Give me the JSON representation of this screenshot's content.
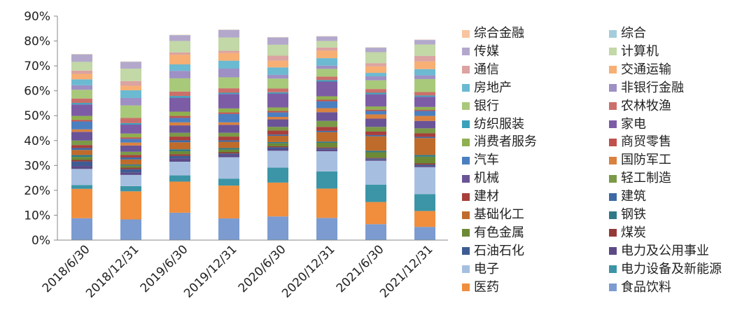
{
  "chart_data": {
    "type": "bar",
    "stacked": true,
    "categories": [
      "2018/6/30",
      "2018/12/31",
      "2019/6/30",
      "2019/12/31",
      "2020/6/30",
      "2020/12/31",
      "2021/6/30",
      "2021/12/31"
    ],
    "y_ticks": [
      "0%",
      "10%",
      "20%",
      "30%",
      "40%",
      "50%",
      "60%",
      "70%",
      "80%",
      "90%"
    ],
    "ylim": [
      0,
      90
    ],
    "grid": false,
    "legend_position": "right",
    "series": [
      {
        "name": "食品饮料",
        "color": "#7B9BD1",
        "values": [
          8.8,
          8.3,
          11.0,
          8.7,
          9.5,
          8.9,
          6.4,
          5.3
        ]
      },
      {
        "name": "医药",
        "color": "#F08E3E",
        "values": [
          11.8,
          11.3,
          12.5,
          13.2,
          13.6,
          11.8,
          8.9,
          6.4
        ]
      },
      {
        "name": "电力设备及新能源",
        "color": "#3B95A6",
        "values": [
          1.5,
          2.1,
          2.5,
          2.8,
          6.0,
          6.9,
          7.0,
          6.8
        ]
      },
      {
        "name": "电子",
        "color": "#A6BFE0",
        "values": [
          6.5,
          4.5,
          5.5,
          8.6,
          6.8,
          8.1,
          9.6,
          10.8
        ]
      },
      {
        "name": "电力及公用事业",
        "color": "#5C4A87",
        "values": [
          1.2,
          1.0,
          1.3,
          1.0,
          0.8,
          0.8,
          0.5,
          0.5
        ]
      },
      {
        "name": "石油石化",
        "color": "#3E5C93",
        "values": [
          1.8,
          1.3,
          1.0,
          0.5,
          0.6,
          0.4,
          0.4,
          0.5
        ]
      },
      {
        "name": "煤炭",
        "color": "#943937",
        "values": [
          0.6,
          0.6,
          0.7,
          0.5,
          0.4,
          0.4,
          0.3,
          0.5
        ]
      },
      {
        "name": "有色金属",
        "color": "#6C8A36",
        "values": [
          1.2,
          0.8,
          1.2,
          1.1,
          1.2,
          1.8,
          2.2,
          2.7
        ]
      },
      {
        "name": "钢铁",
        "color": "#2E7A88",
        "values": [
          0.8,
          0.5,
          0.8,
          0.6,
          0.5,
          0.5,
          0.6,
          0.7
        ]
      },
      {
        "name": "基础化工",
        "color": "#BF6B2B",
        "values": [
          2.0,
          2.0,
          2.8,
          2.5,
          2.5,
          3.8,
          5.8,
          6.8
        ]
      },
      {
        "name": "建筑",
        "color": "#3D6AA6",
        "values": [
          0.8,
          0.8,
          0.8,
          0.6,
          0.5,
          0.5,
          0.5,
          0.5
        ]
      },
      {
        "name": "建材",
        "color": "#A83F3C",
        "values": [
          1.2,
          1.0,
          1.5,
          1.5,
          1.6,
          1.6,
          1.4,
          1.4
        ]
      },
      {
        "name": "轻工制造",
        "color": "#7B9A47",
        "values": [
          1.8,
          1.3,
          1.5,
          1.5,
          1.5,
          2.4,
          1.9,
          2.0
        ]
      },
      {
        "name": "机械",
        "color": "#6A5497",
        "values": [
          3.5,
          2.5,
          3.0,
          3.2,
          3.0,
          3.5,
          3.3,
          3.0
        ]
      },
      {
        "name": "国防军工",
        "color": "#D9823F",
        "values": [
          1.0,
          1.2,
          1.2,
          1.0,
          1.0,
          1.6,
          1.7,
          2.0
        ]
      },
      {
        "name": "汽车",
        "color": "#4B7FC0",
        "values": [
          3.2,
          1.5,
          1.8,
          3.4,
          1.8,
          2.8,
          1.4,
          2.0
        ]
      },
      {
        "name": "商贸零售",
        "color": "#C0504D",
        "values": [
          0.6,
          0.6,
          0.8,
          0.6,
          0.6,
          0.6,
          0.5,
          0.4
        ]
      },
      {
        "name": "消费者服务",
        "color": "#8FB04F",
        "values": [
          1.6,
          1.5,
          1.7,
          1.6,
          1.4,
          1.4,
          1.3,
          1.2
        ]
      },
      {
        "name": "家电",
        "color": "#7D5CA6",
        "values": [
          4.6,
          3.6,
          5.6,
          5.8,
          5.6,
          5.9,
          4.9,
          4.1
        ]
      },
      {
        "name": "纺织服装",
        "color": "#3AA1BC",
        "values": [
          0.6,
          0.6,
          0.7,
          0.5,
          0.5,
          0.6,
          0.6,
          0.5
        ]
      },
      {
        "name": "农林牧渔",
        "color": "#CB6F6A",
        "values": [
          1.8,
          2.1,
          1.8,
          1.8,
          1.5,
          1.4,
          1.5,
          1.4
        ]
      },
      {
        "name": "银行",
        "color": "#A9C97A",
        "values": [
          3.5,
          5.0,
          5.3,
          4.4,
          4.0,
          3.1,
          3.5,
          5.2
        ]
      },
      {
        "name": "非银行金融",
        "color": "#9E8FC4",
        "values": [
          1.8,
          3.0,
          3.0,
          3.5,
          1.5,
          1.3,
          1.6,
          1.5
        ]
      },
      {
        "name": "房地产",
        "color": "#6BBAD1",
        "values": [
          2.4,
          3.1,
          2.6,
          3.2,
          3.0,
          3.0,
          1.4,
          2.5
        ]
      },
      {
        "name": "交通运输",
        "color": "#F7AF74",
        "values": [
          2.2,
          1.8,
          3.9,
          3.1,
          2.7,
          3.0,
          2.6,
          3.1
        ]
      },
      {
        "name": "通信",
        "color": "#DBA3A1",
        "values": [
          1.3,
          1.9,
          0.9,
          0.9,
          2.0,
          1.3,
          1.3,
          2.2
        ]
      },
      {
        "name": "计算机",
        "color": "#C2D8A6",
        "values": [
          3.5,
          5.0,
          4.6,
          5.3,
          4.4,
          2.6,
          4.4,
          4.6
        ]
      },
      {
        "name": "传媒",
        "color": "#B3A8CC",
        "values": [
          3.0,
          2.7,
          2.3,
          3.0,
          2.9,
          1.8,
          1.8,
          1.8
        ]
      },
      {
        "name": "综合",
        "color": "#A5CCDB",
        "values": [
          0.1,
          0.1,
          0.1,
          0.1,
          0.1,
          0.1,
          0.1,
          0.1
        ]
      },
      {
        "name": "综合金融",
        "color": "#F9C4A0",
        "values": [
          0.1,
          0.1,
          0.1,
          0.1,
          0.1,
          0.1,
          0.1,
          0.1
        ]
      }
    ]
  }
}
